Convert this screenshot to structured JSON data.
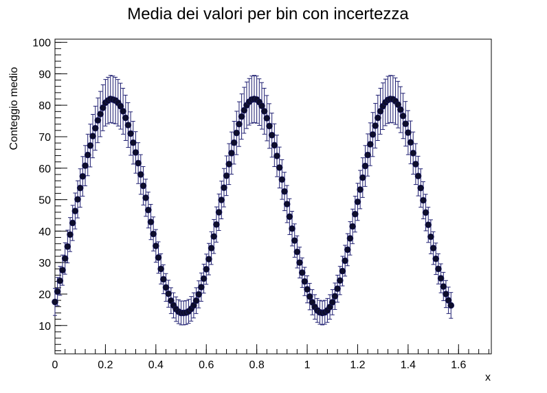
{
  "chart_data": {
    "type": "scatter",
    "title": "Media dei valori per bin con incertezza",
    "xlabel": "x",
    "ylabel": "Conteggio medio",
    "xlim": [
      0,
      1.73
    ],
    "ylim": [
      1,
      101
    ],
    "x_ticks": [
      0,
      0.2,
      0.4,
      0.6,
      0.8,
      1,
      1.2,
      1.4,
      1.6
    ],
    "x_tick_labels": [
      "0",
      "0.2",
      "0.4",
      "0.6",
      "0.8",
      "1",
      "1.2",
      "1.4",
      "1.6"
    ],
    "y_ticks": [
      10,
      20,
      30,
      40,
      50,
      60,
      70,
      80,
      90,
      100
    ],
    "y_tick_labels": [
      "10",
      "20",
      "30",
      "40",
      "50",
      "60",
      "70",
      "80",
      "90",
      "100"
    ],
    "grid": false,
    "legend": "none",
    "series": [
      {
        "x": [
          0.0,
          0.01,
          0.02,
          0.03,
          0.04,
          0.05,
          0.06,
          0.07,
          0.08,
          0.09,
          0.1,
          0.11,
          0.12,
          0.13,
          0.14,
          0.15,
          0.16,
          0.17,
          0.18,
          0.19,
          0.2,
          0.21,
          0.22,
          0.23,
          0.24,
          0.25,
          0.26,
          0.27,
          0.28,
          0.29,
          0.3,
          0.31,
          0.32,
          0.33,
          0.34,
          0.35,
          0.36,
          0.37,
          0.38,
          0.39,
          0.4,
          0.41,
          0.42,
          0.43,
          0.44,
          0.45,
          0.46,
          0.47,
          0.48,
          0.49,
          0.5,
          0.51,
          0.52,
          0.53,
          0.54,
          0.55,
          0.56,
          0.57,
          0.58,
          0.59,
          0.6,
          0.61,
          0.62,
          0.63,
          0.64,
          0.65,
          0.66,
          0.67,
          0.68,
          0.69,
          0.7,
          0.71,
          0.72,
          0.73,
          0.74,
          0.75,
          0.76,
          0.77,
          0.78,
          0.79,
          0.8,
          0.81,
          0.82,
          0.83,
          0.84,
          0.85,
          0.86,
          0.87,
          0.88,
          0.89,
          0.9,
          0.91,
          0.92,
          0.93,
          0.94,
          0.95,
          0.96,
          0.97,
          0.98,
          0.99,
          1.0,
          1.01,
          1.02,
          1.03,
          1.04,
          1.05,
          1.06,
          1.07,
          1.08,
          1.09,
          1.1,
          1.11,
          1.12,
          1.13,
          1.14,
          1.15,
          1.16,
          1.17,
          1.18,
          1.19,
          1.2,
          1.21,
          1.22,
          1.23,
          1.24,
          1.25,
          1.26,
          1.27,
          1.28,
          1.29,
          1.3,
          1.31,
          1.32,
          1.33,
          1.34,
          1.35,
          1.36,
          1.37,
          1.38,
          1.39,
          1.4,
          1.41,
          1.42,
          1.43,
          1.44,
          1.45,
          1.46,
          1.47,
          1.48,
          1.49,
          1.5,
          1.51,
          1.52,
          1.53,
          1.54,
          1.55,
          1.56,
          1.57
        ],
        "y": [
          17.5,
          20.8,
          24.2,
          27.6,
          31.3,
          35.1,
          38.9,
          42.6,
          46.4,
          50.1,
          53.7,
          57.4,
          60.8,
          64.2,
          67.2,
          70.2,
          72.7,
          75.2,
          77.2,
          79.2,
          80.8,
          81.5,
          82.0,
          81.8,
          81.5,
          80.8,
          79.7,
          78.1,
          76.0,
          73.7,
          71.0,
          68.1,
          65.0,
          61.6,
          58.0,
          54.4,
          50.6,
          46.7,
          42.9,
          39.1,
          35.3,
          31.6,
          28.0,
          24.7,
          22.1,
          20.1,
          17.9,
          16.4,
          15.2,
          14.4,
          14.0,
          14.0,
          14.1,
          14.5,
          15.3,
          16.4,
          17.9,
          19.9,
          22.2,
          24.9,
          27.9,
          31.1,
          34.6,
          38.3,
          42.1,
          46.0,
          49.9,
          53.8,
          57.6,
          61.3,
          64.8,
          68.1,
          71.2,
          74.0,
          76.4,
          78.4,
          80.0,
          81.1,
          81.8,
          82.0,
          81.8,
          81.0,
          79.8,
          78.1,
          75.9,
          73.4,
          70.5,
          67.3,
          63.9,
          60.2,
          56.4,
          52.6,
          48.6,
          44.6,
          40.8,
          37.0,
          33.4,
          30.0,
          26.8,
          24.0,
          21.5,
          19.2,
          17.4,
          15.9,
          14.8,
          14.2,
          14.0,
          14.2,
          14.8,
          15.9,
          17.4,
          19.3,
          21.7,
          24.3,
          27.3,
          30.6,
          34.1,
          37.7,
          41.5,
          45.4,
          49.3,
          53.2,
          57.0,
          60.7,
          64.2,
          67.6,
          70.7,
          73.5,
          76.0,
          78.1,
          79.7,
          80.9,
          81.7,
          82.0,
          81.9,
          81.3,
          80.2,
          78.6,
          76.6,
          74.1,
          71.3,
          68.2,
          64.8,
          61.3,
          57.5,
          53.7,
          49.8,
          45.9,
          42.0,
          38.2,
          34.6,
          31.2,
          28.0,
          25.0,
          22.4,
          20.0,
          18.0,
          16.4
        ],
        "error": [
          4.3,
          4.5,
          4.6,
          4.8,
          5.0,
          5.2,
          5.4,
          5.6,
          5.7,
          5.9,
          6.1,
          6.3,
          6.4,
          6.6,
          6.8,
          6.9,
          7.0,
          7.1,
          7.2,
          7.3,
          7.4,
          7.4,
          7.5,
          7.5,
          7.4,
          7.4,
          7.3,
          7.3,
          7.2,
          7.1,
          6.9,
          6.8,
          6.6,
          6.5,
          6.3,
          6.1,
          5.9,
          5.7,
          5.6,
          5.4,
          5.2,
          5.0,
          4.8,
          4.6,
          4.4,
          4.3,
          4.1,
          4.0,
          3.9,
          3.8,
          3.8,
          3.8,
          3.8,
          3.8,
          3.9,
          4.0,
          4.1,
          4.3,
          4.5,
          4.6,
          4.8,
          5.0,
          5.2,
          5.4,
          5.6,
          5.8,
          6.0,
          6.1,
          6.3,
          6.5,
          6.7,
          6.8,
          6.9,
          7.1,
          7.2,
          7.3,
          7.4,
          7.4,
          7.5,
          7.5,
          7.5,
          7.4,
          7.4,
          7.3,
          7.2,
          7.1,
          7.0,
          6.8,
          6.6,
          6.5,
          6.3,
          6.1,
          5.9,
          5.7,
          5.5,
          5.3,
          5.1,
          4.9,
          4.7,
          4.5,
          4.3,
          4.2,
          4.0,
          3.9,
          3.8,
          3.8,
          3.8,
          3.8,
          3.8,
          3.9,
          4.0,
          4.2,
          4.3,
          4.5,
          4.7,
          4.9,
          5.1,
          5.3,
          5.5,
          5.7,
          5.9,
          6.1,
          6.3,
          6.5,
          6.7,
          6.8,
          7.0,
          7.1,
          7.2,
          7.3,
          7.4,
          7.4,
          7.5,
          7.5,
          7.5,
          7.4,
          7.4,
          7.3,
          7.2,
          7.1,
          7.0,
          6.8,
          6.7,
          6.5,
          6.3,
          6.1,
          5.9,
          5.8,
          5.6,
          5.4,
          5.2,
          5.0,
          4.8,
          4.6,
          4.5,
          4.3,
          4.2,
          4.1
        ]
      }
    ]
  }
}
